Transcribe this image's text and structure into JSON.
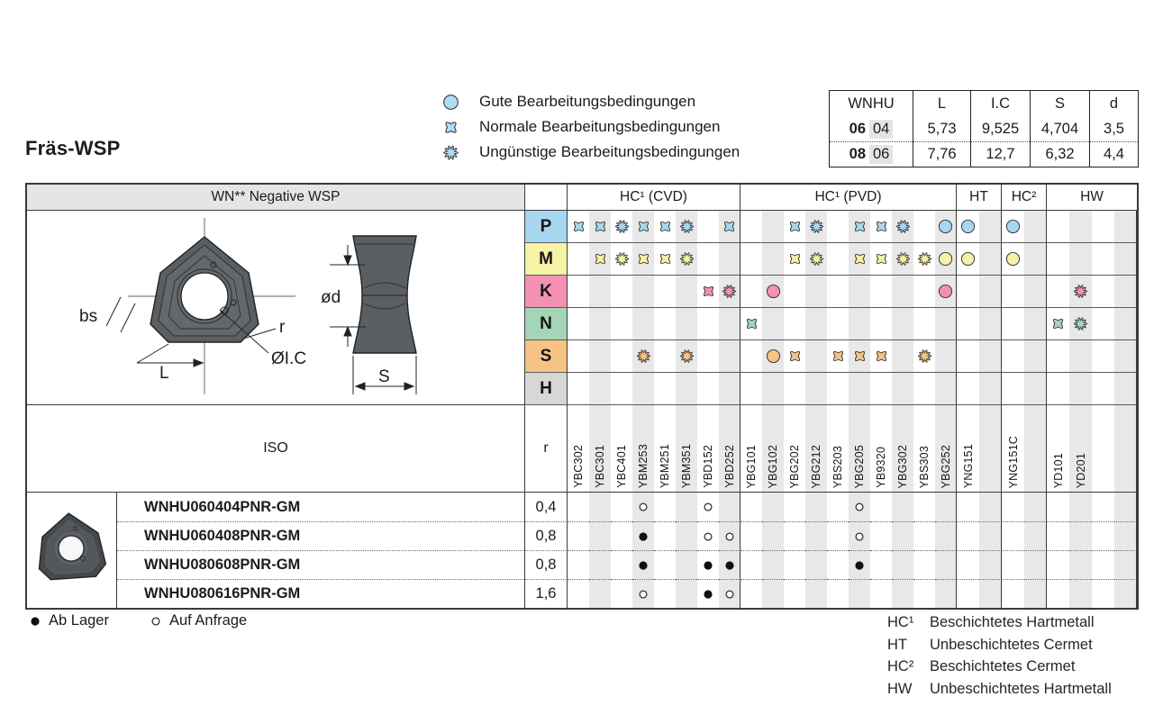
{
  "page": {
    "title": "Fräs-WSP"
  },
  "legend": [
    {
      "symbol": "gute",
      "label": "Gute Bearbeitungsbedingungen"
    },
    {
      "symbol": "normale",
      "label": "Normale Bearbeitungsbedingungen"
    },
    {
      "symbol": "unguenstige",
      "label": "Ungünstige Bearbeitungsbedingungen"
    }
  ],
  "legend_icon_color": "#aedcf4",
  "dim_table": {
    "headers": [
      "WNHU",
      "L",
      "I.C",
      "S",
      "d"
    ],
    "rows": [
      {
        "size_bold": "06",
        "size_shaded": "04",
        "values": [
          "5,73",
          "9,525",
          "4,704",
          "3,5"
        ]
      },
      {
        "size_bold": "08",
        "size_shaded": "06",
        "values": [
          "7,76",
          "12,7",
          "6,32",
          "4,4"
        ]
      }
    ]
  },
  "matrix": {
    "left_header": "WN** Negative WSP",
    "groups": [
      {
        "label": "HC¹ (CVD)",
        "cols": [
          "YBC302",
          "YBC301",
          "YBC401",
          "YBM253",
          "YBM251",
          "YBM351",
          "YBD152",
          "YBD252"
        ]
      },
      {
        "label": "HC¹ (PVD)",
        "cols": [
          "YBG101",
          "YBG102",
          "YBG202",
          "YBG212",
          "YBS203",
          "YBG205",
          "YB9320",
          "YBG302",
          "YBS303",
          "YBG252"
        ]
      },
      {
        "label": "HT",
        "cols": [
          "YNG151",
          ""
        ]
      },
      {
        "label": "HC²",
        "cols": [
          "YNG151C",
          ""
        ]
      },
      {
        "label": "HW",
        "cols": [
          "YD101",
          "YD201",
          "",
          ""
        ]
      }
    ],
    "rows": [
      {
        "letter": "P",
        "color": "#a7d7f0",
        "symbols": {
          "YBC302": "normale",
          "YBC301": "normale",
          "YBC401": "unguenstige",
          "YBM253": "normale",
          "YBM251": "normale",
          "YBM351": "unguenstige",
          "YBD252": "normale",
          "YBG202": "normale",
          "YBG212": "unguenstige",
          "YBG205": "normale",
          "YB9320": "normale",
          "YBG302": "unguenstige",
          "YBG252": "gute",
          "YNG151": "gute",
          "YNG151C": "gute"
        }
      },
      {
        "letter": "M",
        "color": "#f6f2a6",
        "symbols": {
          "YBC301": "normale",
          "YBC401": "unguenstige",
          "YBM253": "normale",
          "YBM251": "normale",
          "YBM351": "unguenstige",
          "YBG202": "normale",
          "YBG212": "unguenstige",
          "YBG205": "normale",
          "YB9320": "normale",
          "YBG302": "unguenstige",
          "YBS303": "unguenstige",
          "YBG252": "gute",
          "YNG151": "gute",
          "YNG151C": "gute"
        }
      },
      {
        "letter": "K",
        "color": "#f491b2",
        "symbols": {
          "YBD152": "normale",
          "YBD252": "unguenstige",
          "YBG102": "gute",
          "YBG252": "gute",
          "YD201": "unguenstige"
        }
      },
      {
        "letter": "N",
        "color": "#a3d5b6",
        "symbols": {
          "YBG101": "normale",
          "YD101": "normale",
          "YD201": "unguenstige"
        }
      },
      {
        "letter": "S",
        "color": "#f6c385",
        "symbols": {
          "YBM253": "unguenstige",
          "YBM351": "unguenstige",
          "YBG102": "gute",
          "YBG202": "normale",
          "YBS203": "normale",
          "YBG205": "normale",
          "YB9320": "normale",
          "YBS303": "unguenstige"
        }
      },
      {
        "letter": "H",
        "color": "#d7d7d7",
        "symbols": {}
      }
    ],
    "iso_label": "ISO",
    "r_label": "r"
  },
  "products": {
    "rows": [
      {
        "name": "WNHU060404PNR-GM",
        "r": "0,4",
        "avail": {
          "YBM253": "anfrage",
          "YBD152": "anfrage",
          "YBG205": "anfrage"
        }
      },
      {
        "name": "WNHU060408PNR-GM",
        "r": "0,8",
        "avail": {
          "YBM253": "lager",
          "YBD152": "anfrage",
          "YBD252": "anfrage",
          "YBG205": "anfrage"
        }
      },
      {
        "name": "WNHU080608PNR-GM",
        "r": "0,8",
        "avail": {
          "YBM253": "lager",
          "YBD152": "lager",
          "YBD252": "lager",
          "YBG205": "lager"
        }
      },
      {
        "name": "WNHU080616PNR-GM",
        "r": "1,6",
        "avail": {
          "YBM253": "anfrage",
          "YBD152": "lager",
          "YBD252": "anfrage"
        }
      }
    ]
  },
  "availability_legend": [
    {
      "symbol": "lager",
      "label": "Ab Lager"
    },
    {
      "symbol": "anfrage",
      "label": "Auf Anfrage"
    }
  ],
  "footnotes": [
    {
      "abbr": "HC¹",
      "text": "Beschichtetes Hartmetall"
    },
    {
      "abbr": "HT",
      "text": "Unbeschichtetes Cermet"
    },
    {
      "abbr": "HC²",
      "text": "Beschichtetes Cermet"
    },
    {
      "abbr": "HW",
      "text": "Unbeschichtetes Hartmetall"
    }
  ],
  "drawing": {
    "front_labels": {
      "bs": "bs",
      "l": "L",
      "r": "r",
      "ic": "ØI.C"
    },
    "side_labels": {
      "d": "ød",
      "s": "S"
    }
  },
  "colors": {
    "stripe": "#e8e8e8",
    "header_bg": "#e5e5e5"
  }
}
